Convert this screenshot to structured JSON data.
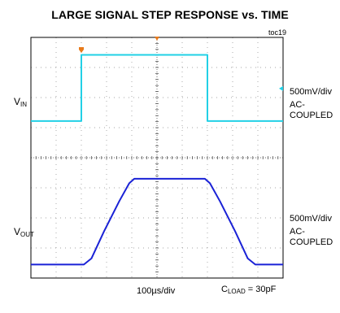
{
  "title": "LARGE SIGNAL STEP RESPONSE vs. TIME",
  "figure_id": "toc19",
  "left_labels": {
    "top": {
      "main": "V",
      "sub": "IN"
    },
    "bottom": {
      "main": "V",
      "sub": "OUT"
    }
  },
  "right_labels": {
    "top": {
      "scale": "500mV/div",
      "coupling_1": "AC-",
      "coupling_2": "COUPLED"
    },
    "bottom": {
      "scale": "500mV/div",
      "coupling_1": "AC-",
      "coupling_2": "COUPLED"
    }
  },
  "bottom_labels": {
    "timebase": "100µs/div",
    "load_main": "C",
    "load_sub": "LOAD",
    "load_value": " = 30pF"
  },
  "colors": {
    "vin": "#22d0e6",
    "vout": "#1a22d6",
    "marker": "#e87a1a",
    "grid": "#888888",
    "frame": "#000000"
  },
  "chart_data": {
    "type": "line",
    "title": "LARGE SIGNAL STEP RESPONSE vs. TIME",
    "x_unit": "div",
    "xlim": [
      0,
      10
    ],
    "ylim": [
      0,
      8
    ],
    "grid": true,
    "grid_divisions": {
      "x": 10,
      "y": 8
    },
    "series": [
      {
        "name": "VIN",
        "x": [
          0,
          2.0,
          2.0,
          7.0,
          7.0,
          10
        ],
        "y": [
          5.22,
          5.22,
          7.42,
          7.42,
          5.22,
          5.22
        ]
      },
      {
        "name": "VOUT",
        "x": [
          0,
          2.1,
          2.4,
          2.9,
          3.5,
          3.9,
          4.1,
          6.9,
          7.1,
          7.5,
          8.1,
          8.6,
          8.9,
          10
        ],
        "y": [
          0.45,
          0.45,
          0.65,
          1.55,
          2.55,
          3.15,
          3.3,
          3.3,
          3.15,
          2.55,
          1.55,
          0.65,
          0.45,
          0.45
        ]
      }
    ]
  }
}
